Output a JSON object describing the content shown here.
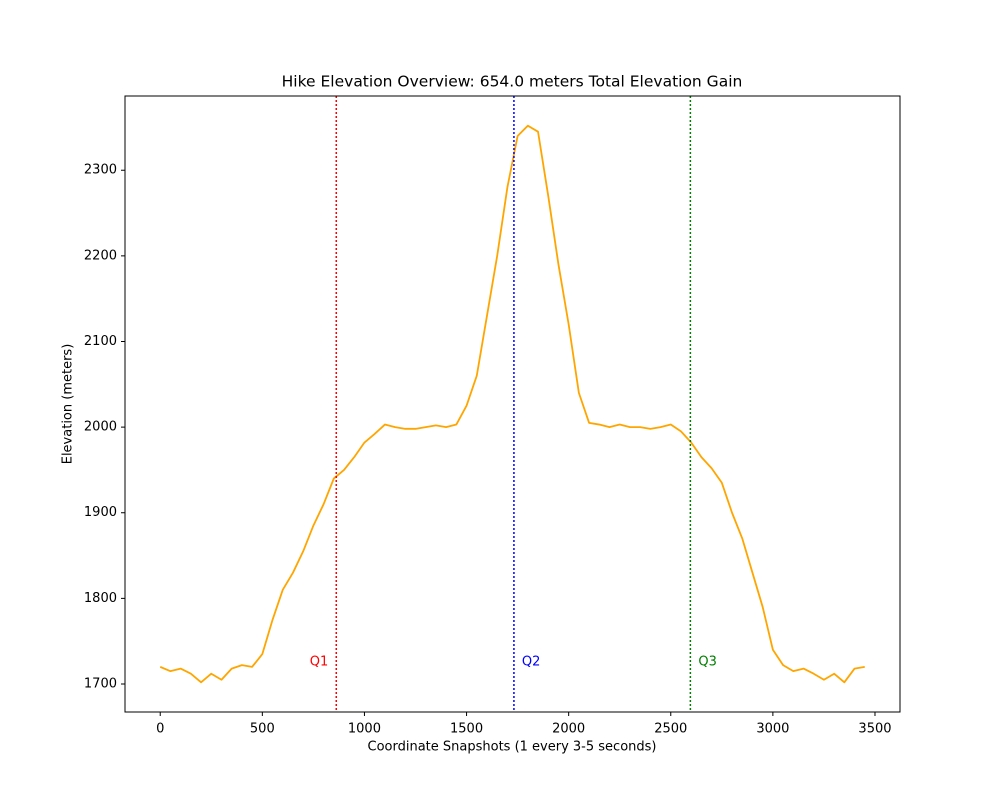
{
  "chart_data": {
    "type": "line",
    "title": "Hike Elevation Overview: 654.0 meters Total Elevation Gain",
    "x_label": "Coordinate Snapshots (1 every 3-5 seconds)",
    "y_label": "Elevation (meters)",
    "x": [
      0,
      50,
      100,
      150,
      200,
      250,
      300,
      350,
      400,
      450,
      500,
      550,
      600,
      650,
      700,
      750,
      800,
      850,
      900,
      950,
      1000,
      1050,
      1100,
      1150,
      1200,
      1250,
      1300,
      1350,
      1400,
      1450,
      1500,
      1550,
      1600,
      1650,
      1700,
      1750,
      1800,
      1850,
      1900,
      1950,
      2000,
      2050,
      2100,
      2150,
      2200,
      2250,
      2300,
      2350,
      2400,
      2450,
      2500,
      2550,
      2600,
      2650,
      2700,
      2750,
      2800,
      2850,
      2900,
      2950,
      3000,
      3050,
      3100,
      3150,
      3200,
      3250,
      3300,
      3350,
      3400,
      3450
    ],
    "values": [
      1720,
      1715,
      1718,
      1712,
      1702,
      1712,
      1705,
      1718,
      1722,
      1720,
      1735,
      1775,
      1810,
      1830,
      1855,
      1885,
      1910,
      1940,
      1950,
      1965,
      1982,
      1992,
      2003,
      2000,
      1998,
      1998,
      2000,
      2002,
      2000,
      2003,
      2025,
      2060,
      2130,
      2200,
      2280,
      2340,
      2352,
      2345,
      2270,
      2190,
      2120,
      2040,
      2005,
      2003,
      2000,
      2003,
      2000,
      2000,
      1998,
      2000,
      2003,
      1995,
      1982,
      1965,
      1952,
      1935,
      1900,
      1870,
      1830,
      1790,
      1740,
      1722,
      1715,
      1718,
      1712,
      1705,
      1712,
      1702,
      1718,
      1720
    ],
    "color": "orange",
    "xlim": [
      -172.5,
      3622.5
    ],
    "ylim": [
      1667.3,
      2386.7
    ],
    "xticks": [
      0,
      500,
      1000,
      1500,
      2000,
      2500,
      3000,
      3500
    ],
    "yticks": [
      1700,
      1800,
      1900,
      2000,
      2100,
      2200,
      2300
    ],
    "markers": [
      {
        "x": 862,
        "label": "Q1",
        "color": "red"
      },
      {
        "x": 1732,
        "label": "Q2",
        "color": "blue"
      },
      {
        "x": 2596,
        "label": "Q3",
        "color": "green"
      }
    ]
  }
}
